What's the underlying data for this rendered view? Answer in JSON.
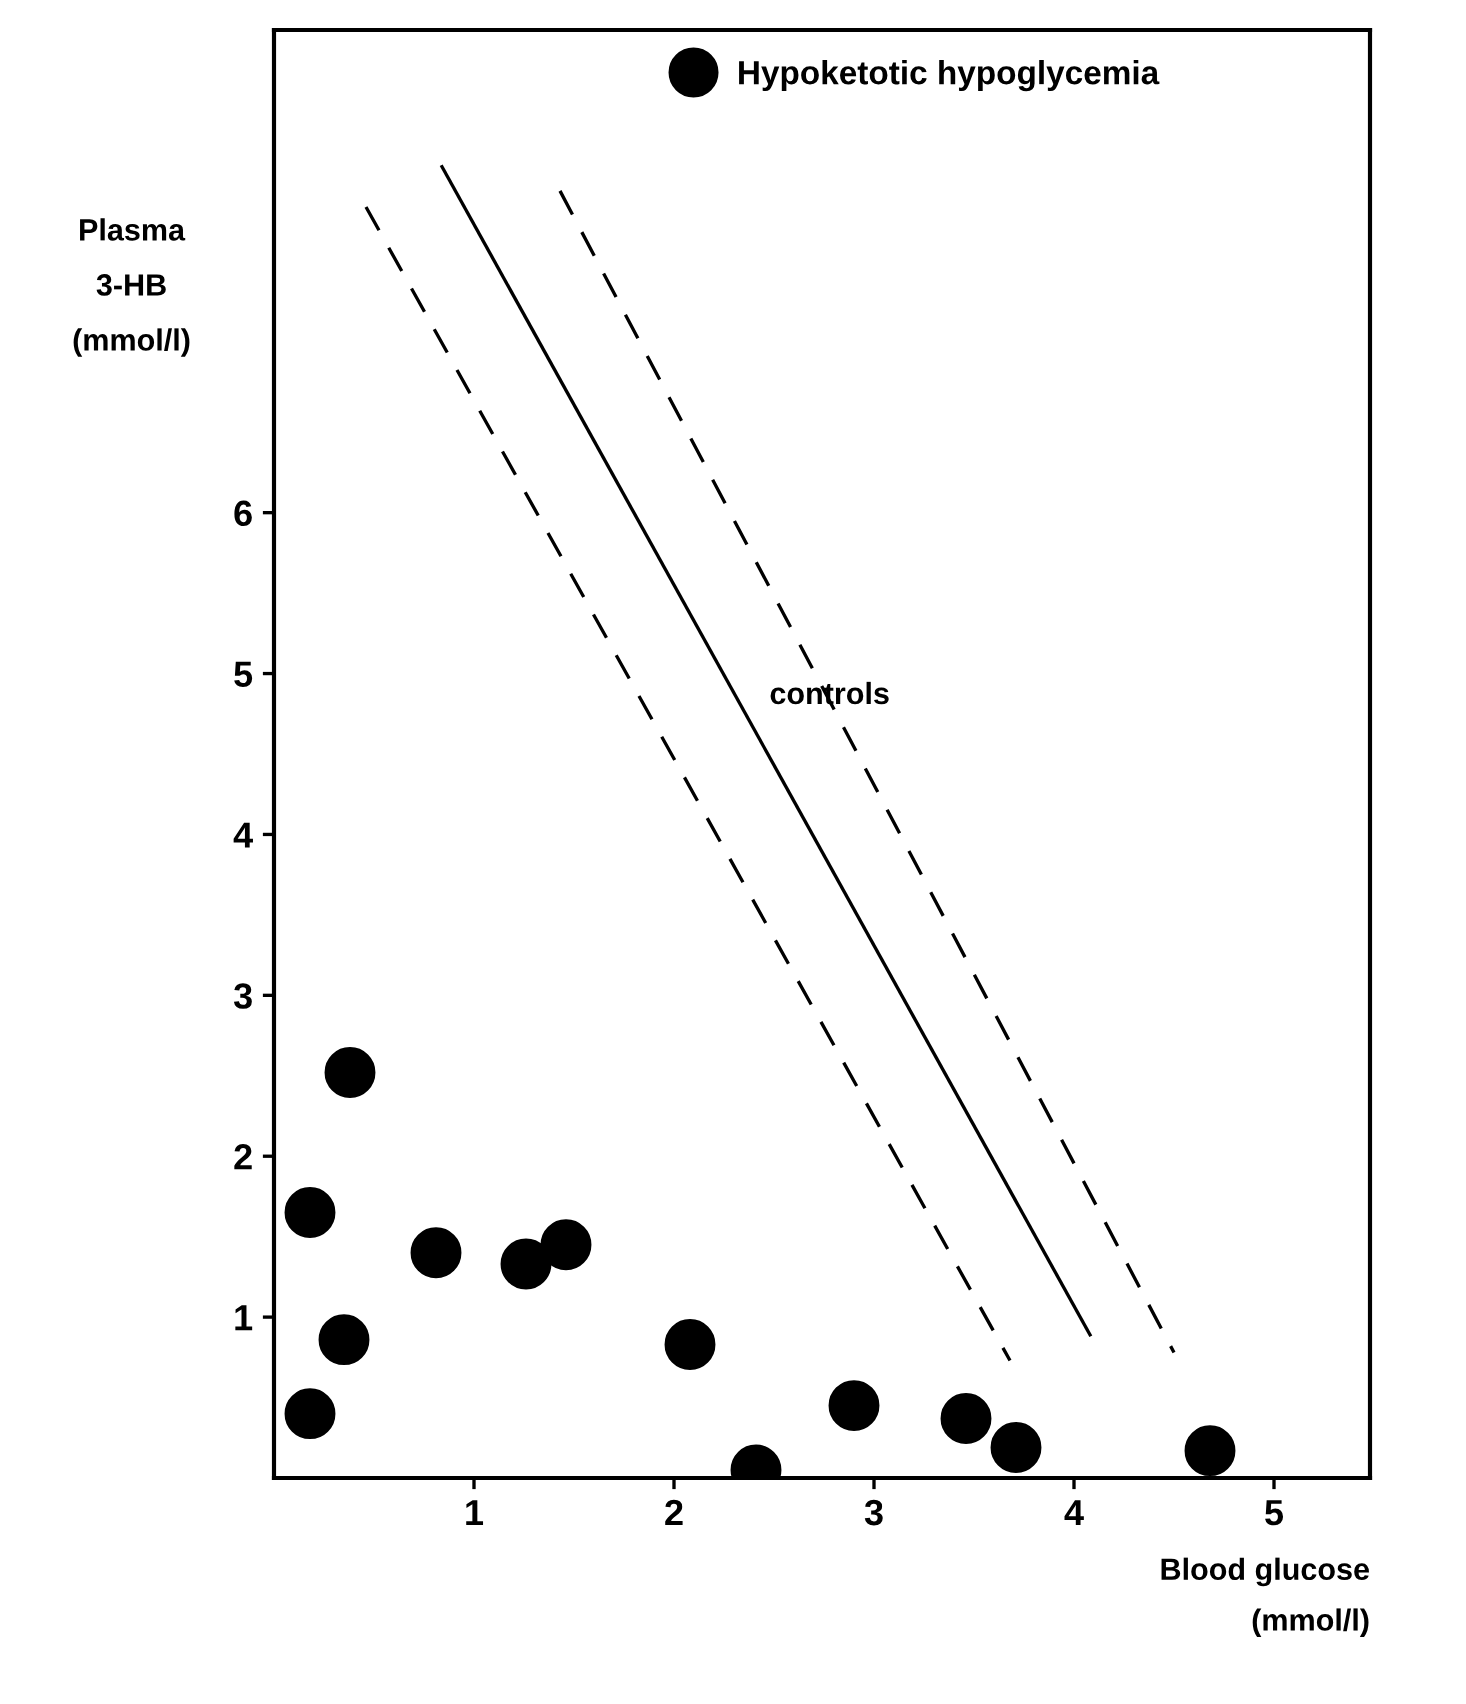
{
  "chart_data": {
    "type": "scatter",
    "xlabel": "Blood glucose\n(mmol/l)",
    "ylabel": "Plasma\n3-HB\n(mmol/l)",
    "xlim": [
      0,
      5.48
    ],
    "ylim": [
      0,
      9
    ],
    "xticks": [
      1,
      2,
      3,
      4,
      5
    ],
    "yticks": [
      1,
      2,
      3,
      4,
      5,
      6
    ],
    "grid": false,
    "legend": "top",
    "series": [
      {
        "name": "Hypoketotic hypoglycemia",
        "marker": "circle",
        "color": "#000000",
        "x": [
          0.18,
          0.18,
          0.35,
          0.38,
          0.81,
          1.26,
          1.46,
          2.08,
          2.41,
          2.9,
          3.46,
          3.71,
          4.68
        ],
        "values": [
          0.4,
          1.65,
          0.86,
          2.52,
          1.4,
          1.33,
          1.45,
          0.83,
          0.05,
          0.45,
          0.37,
          0.19,
          0.17
        ]
      },
      {
        "type": "line",
        "line_style": "solid",
        "color": "#000000",
        "x": [
          0.84,
          4.08
        ],
        "values": [
          8.15,
          0.89
        ]
      },
      {
        "type": "line",
        "line_style": "dashed",
        "color": "#000000",
        "x": [
          0.46,
          3.68
        ],
        "values": [
          7.9,
          0.73
        ]
      },
      {
        "type": "line",
        "line_style": "dashed",
        "color": "#000000",
        "x": [
          1.43,
          4.5
        ],
        "values": [
          8.0,
          0.78
        ]
      }
    ],
    "annotations": [
      "controls"
    ]
  }
}
